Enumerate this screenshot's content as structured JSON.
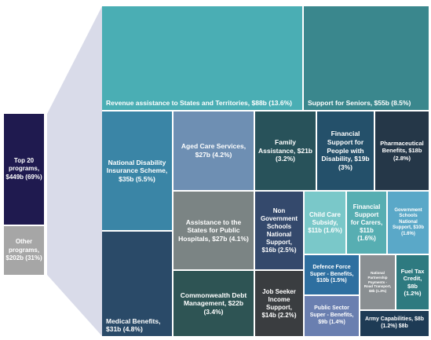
{
  "chart_data": {
    "type": "treemap",
    "summary_bar": [
      {
        "label": "Top 20 programs, $449b (69%)",
        "value": 449,
        "share": 0.69,
        "color": "#1f1a4f"
      },
      {
        "label": "Other programs, $202b (31%)",
        "value": 202,
        "share": 0.31,
        "color": "#a6a6a6"
      }
    ],
    "items": [
      {
        "label": "Revenue assistance to States and Territories, $88b (13.6%)",
        "value": 88,
        "color": "#4aaeb4"
      },
      {
        "label": "Support for Seniors, $55b (8.5%)",
        "value": 55,
        "color": "#3a878d"
      },
      {
        "label": "National Disability Insurance Scheme, $35b (5.5%)",
        "value": 35,
        "color": "#3a85a6"
      },
      {
        "label": "Aged Care Services, $27b (4.2%)",
        "value": 27,
        "color": "#6e8fb3"
      },
      {
        "label": "Family Assistance, $21b (3.2%)",
        "value": 21,
        "color": "#28525a"
      },
      {
        "label": "Financial Support for People with Disability, $19b (3%)",
        "value": 19,
        "color": "#24506a"
      },
      {
        "label": "Pharmaceutical Benefits, $18b (2.8%)",
        "value": 18,
        "color": "#253748"
      },
      {
        "label": "Medical Benefits, $31b (4.8%)",
        "value": 31,
        "color": "#2a4a68"
      },
      {
        "label": "Assistance to the States for Public Hospitals, $27b (4.1%)",
        "value": 27,
        "color": "#7b8484"
      },
      {
        "label": "Non Government Schools National Support, $16b (2.5%)",
        "value": 16,
        "color": "#34496c"
      },
      {
        "label": "Child Care Subsidy, $11b (1.6%)",
        "value": 11,
        "color": "#7ac8c9"
      },
      {
        "label": "Financial Support for Carers, $11b (1.6%)",
        "value": 11,
        "color": "#57aeb2"
      },
      {
        "label": "Government Schools National Support, $10b (1.6%)",
        "value": 10,
        "color": "#5aa8c8"
      },
      {
        "label": "Commonwealth Debt Management, $22b (3.4%)",
        "value": 22,
        "color": "#2e5454"
      },
      {
        "label": "Job Seeker Income Support, $14b (2.2%)",
        "value": 14,
        "color": "#3a3d40"
      },
      {
        "label": "Defence Force Super - Benefits, $10b (1.5%)",
        "value": 10,
        "color": "#2e6fa0"
      },
      {
        "label": "National Partnership Payments - Road Transport, $8b (1.3%)",
        "value": 8,
        "color": "#8a8f92"
      },
      {
        "label": "Fuel Tax Credit, $8b (1.2%)",
        "value": 8,
        "color": "#2e7a80"
      },
      {
        "label": "Public Sector Super - Benefits, $9b (1.4%)",
        "value": 9,
        "color": "#6a7fb0"
      },
      {
        "label": "Army Capabilities, $8b (1.2%) $8b",
        "value": 8,
        "color": "#1e3b55"
      }
    ]
  }
}
